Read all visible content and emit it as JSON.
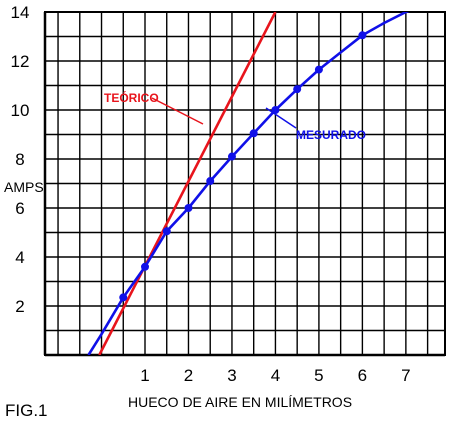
{
  "figure_label": "FIG.1",
  "chart_data": {
    "type": "line",
    "title": "",
    "xlabel": "HUECO DE AIRE EN MILÍMETROS",
    "ylabel": "AMPS",
    "xlim": [
      -1.3,
      7.9
    ],
    "ylim": [
      0,
      14
    ],
    "x_ticks": [
      1,
      2,
      3,
      4,
      5,
      6,
      7
    ],
    "y_ticks": [
      2,
      4,
      6,
      8,
      10,
      12,
      14
    ],
    "grid": true,
    "series": [
      {
        "name": "TEÓRICO",
        "color": "#e8141c",
        "marker": "none",
        "x": [
          -0.05,
          4.0
        ],
        "y": [
          0,
          14
        ]
      },
      {
        "name": "MESURADO",
        "color": "#1010e8",
        "marker": "circle",
        "x": [
          -0.3,
          0.0,
          0.5,
          1.0,
          1.5,
          2.0,
          2.5,
          3.0,
          3.5,
          4.0,
          4.5,
          5.0,
          5.5,
          6.0,
          6.5,
          7.0,
          7.3
        ],
        "y": [
          0,
          0.85,
          2.35,
          3.6,
          5.05,
          6.0,
          7.1,
          8.1,
          9.05,
          10.0,
          10.85,
          11.65,
          12.35,
          13.05,
          13.55,
          14.0,
          14.2
        ],
        "point_x": [
          0.5,
          1.0,
          1.5,
          2.0,
          2.5,
          3.0,
          3.5,
          4.0,
          4.5,
          5.0,
          6.0
        ],
        "point_y": [
          2.35,
          3.6,
          5.05,
          6.0,
          7.1,
          8.1,
          9.05,
          10.0,
          10.85,
          11.65,
          13.05
        ]
      }
    ]
  }
}
